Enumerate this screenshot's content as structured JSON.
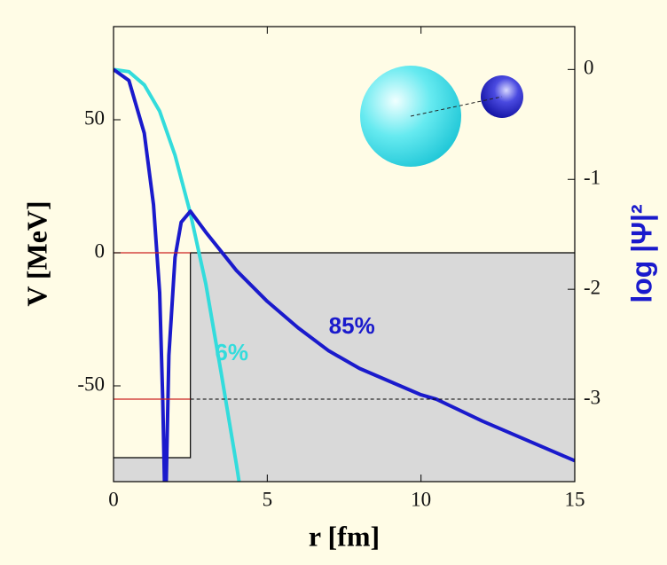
{
  "chart_data": {
    "type": "line",
    "xlabel": "r [fm]",
    "ylabel": "V [MeV]",
    "y2label": "log |Ψ|²",
    "xlim": [
      0,
      15
    ],
    "xticks": [
      0,
      5,
      10,
      15
    ],
    "ylim": [
      -86,
      85
    ],
    "yticks": [
      -50,
      0,
      50
    ],
    "y2lim": [
      -3.75,
      0.39
    ],
    "y2ticks": [
      -3,
      -2,
      -1,
      0
    ],
    "levels": [
      0,
      -55
    ],
    "level_color": "#cc2222",
    "series": [
      {
        "kind": "area",
        "axis": "y",
        "color": "#d9d9d9",
        "x": [
          0,
          2.5,
          2.5,
          15
        ],
        "values": [
          -77,
          -77,
          0,
          0
        ]
      },
      {
        "axis": "y2",
        "color": "#33dcdc",
        "x": [
          0,
          0.5,
          1,
          1.5,
          2,
          2.5,
          3,
          3.5,
          4,
          4.1
        ],
        "values": [
          0,
          -0.02,
          -0.14,
          -0.38,
          -0.78,
          -1.31,
          -1.95,
          -2.76,
          -3.6,
          -3.78
        ]
      },
      {
        "axis": "y2",
        "color": "#1a1acc",
        "x": [
          0,
          0.5,
          1,
          1.3,
          1.5,
          1.6,
          1.66,
          1.68,
          1.71,
          1.8,
          2.0,
          2.2,
          2.5,
          3,
          4,
          5,
          6,
          7,
          8,
          10,
          10.5,
          12,
          15
        ],
        "values": [
          0,
          -0.1,
          -0.58,
          -1.23,
          -2.03,
          -3.0,
          -3.8,
          null,
          -3.8,
          -2.6,
          -1.71,
          -1.39,
          -1.29,
          -1.48,
          -1.83,
          -2.11,
          -2.35,
          -2.56,
          -2.72,
          -2.96,
          -3.0,
          -3.2,
          -3.56
        ]
      }
    ],
    "annotations": [
      {
        "text": "6%",
        "x": 3.3,
        "y": -38,
        "color": "#33dcdc"
      },
      {
        "text": "85%",
        "x": 7.0,
        "y": -28,
        "color": "#1a1acc"
      }
    ]
  }
}
